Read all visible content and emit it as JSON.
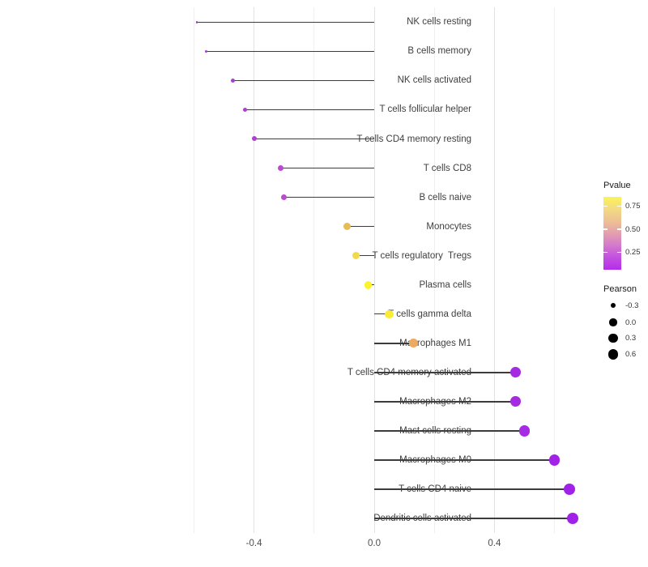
{
  "chart_data": {
    "type": "lollipop",
    "orientation": "horizontal",
    "title": "",
    "xlabel": "",
    "ylabel": "",
    "xlim": [
      -0.67,
      0.71
    ],
    "grid": "vertical-only",
    "x_ticks": [
      {
        "value": -0.4,
        "label": "-0.4"
      },
      {
        "value": 0.0,
        "label": "0.0"
      },
      {
        "value": 0.4,
        "label": "0.4"
      }
    ],
    "x_minor_gridline_values": [
      -0.6,
      -0.2,
      0.2,
      0.6
    ],
    "stem_color": "#3c3c3c",
    "points": [
      {
        "label": "NK cells resting",
        "pearson": -0.59,
        "color": "#9c3cc6"
      },
      {
        "label": "B cells memory",
        "pearson": -0.56,
        "color": "#a73ad2"
      },
      {
        "label": "NK cells activated",
        "pearson": -0.47,
        "color": "#ac3dd4"
      },
      {
        "label": "T cells follicular helper",
        "pearson": -0.43,
        "color": "#b13ed2"
      },
      {
        "label": "T cells CD4 memory resting",
        "pearson": -0.4,
        "color": "#b23fd2"
      },
      {
        "label": "T cells CD8",
        "pearson": -0.31,
        "color": "#bc49d0"
      },
      {
        "label": "B cells naive",
        "pearson": -0.3,
        "color": "#bc49d0"
      },
      {
        "label": "Monocytes",
        "pearson": -0.09,
        "color": "#e5bc58"
      },
      {
        "label": "T cells regulatory  Tregs",
        "pearson": -0.06,
        "color": "#f0da4c"
      },
      {
        "label": "Plasma cells",
        "pearson": -0.02,
        "color": "#fbf32c"
      },
      {
        "label": "T cells gamma delta",
        "pearson": 0.05,
        "color": "#f8ec38"
      },
      {
        "label": "Macrophages M1",
        "pearson": 0.13,
        "color": "#ecaa62"
      },
      {
        "label": "T cells CD4 memory activated",
        "pearson": 0.47,
        "color": "#a62ae2"
      },
      {
        "label": "Macrophages M2",
        "pearson": 0.47,
        "color": "#a62ae2"
      },
      {
        "label": "Mast cells resting",
        "pearson": 0.5,
        "color": "#a62be4"
      },
      {
        "label": "Macrophages M0",
        "pearson": 0.6,
        "color": "#a223e6"
      },
      {
        "label": "T cells CD4 naive",
        "pearson": 0.65,
        "color": "#a121e8"
      },
      {
        "label": "Dendritic cells activated",
        "pearson": 0.66,
        "color": "#a121e8"
      }
    ],
    "color_legend": {
      "title": "Pvalue",
      "ticks": [
        {
          "label": "0.75",
          "pos": 0.13
        },
        {
          "label": "0.50",
          "pos": 0.445
        },
        {
          "label": "0.25",
          "pos": 0.76
        }
      ],
      "high_color": "#faf455",
      "low_color": "#b32deb"
    },
    "size_legend": {
      "title": "Pearson",
      "dot_color": "#000000",
      "items": [
        {
          "label": "-0.3",
          "value": -0.3
        },
        {
          "label": "0.0",
          "value": 0.0
        },
        {
          "label": "0.3",
          "value": 0.3
        },
        {
          "label": "0.6",
          "value": 0.6
        }
      ]
    }
  }
}
